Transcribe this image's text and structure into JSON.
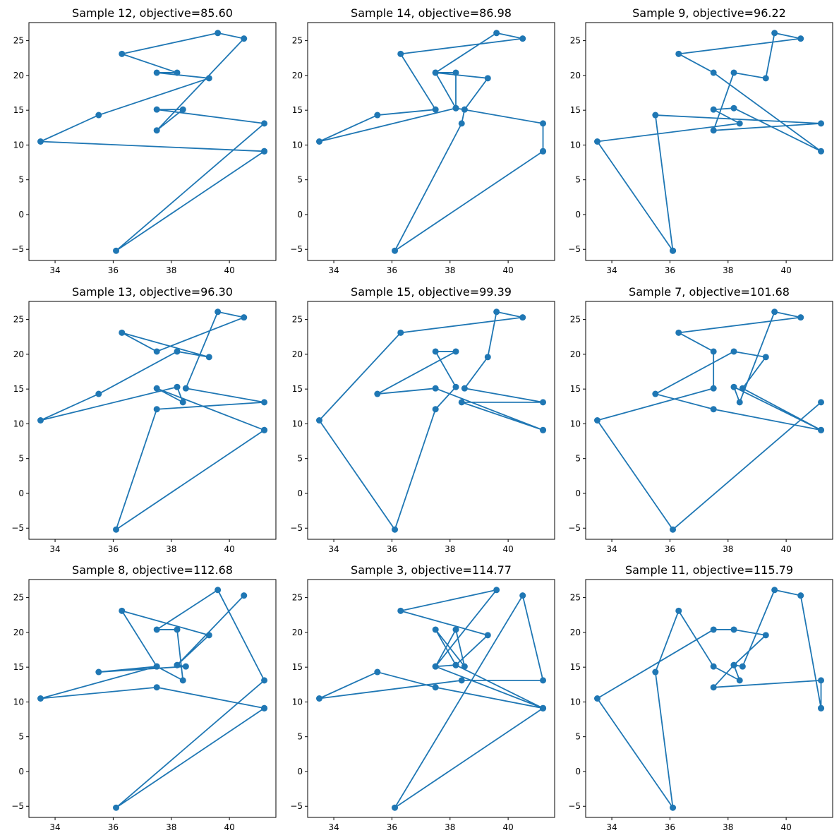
{
  "figure": {
    "color": "#1f77b4"
  },
  "chart_data": [
    {
      "type": "line",
      "title": "Sample 12, objective=85.60",
      "xlabel": "",
      "ylabel": "",
      "xlim": [
        33.1,
        41.6
      ],
      "ylim": [
        -6.6,
        27.6
      ],
      "xticks": [
        34,
        36,
        38,
        40
      ],
      "yticks": [
        -5,
        0,
        5,
        10,
        15,
        20,
        25
      ],
      "xtick_labels": [
        "34",
        "36",
        "38",
        "40"
      ],
      "ytick_labels": [
        "−5",
        "0",
        "5",
        "10",
        "15",
        "20",
        "25"
      ],
      "marker": "circle",
      "grid": false,
      "x": [
        41.2,
        33.5,
        35.5,
        39.3,
        37.5,
        38.2,
        36.3,
        39.6,
        40.5,
        37.5,
        38.4,
        37.5,
        41.2,
        36.1,
        41.2
      ],
      "y": [
        9.1,
        10.5,
        14.3,
        19.6,
        20.4,
        20.4,
        23.1,
        26.1,
        25.3,
        12.1,
        15.1,
        15.1,
        13.1,
        -5.2,
        9.1
      ]
    },
    {
      "type": "line",
      "title": "Sample 14, objective=86.98",
      "xlabel": "",
      "ylabel": "",
      "xlim": [
        33.1,
        41.6
      ],
      "ylim": [
        -6.6,
        27.6
      ],
      "xticks": [
        34,
        36,
        38,
        40
      ],
      "yticks": [
        -5,
        0,
        5,
        10,
        15,
        20,
        25
      ],
      "xtick_labels": [
        "34",
        "36",
        "38",
        "40"
      ],
      "ytick_labels": [
        "−5",
        "0",
        "5",
        "10",
        "15",
        "20",
        "25"
      ],
      "marker": "circle",
      "grid": false,
      "x": [
        41.2,
        36.1,
        38.4,
        38.5,
        39.3,
        37.5,
        38.2,
        38.2,
        37.5,
        39.6,
        40.5,
        36.3,
        37.5,
        35.5,
        33.5,
        38.2,
        41.2,
        41.2
      ],
      "y": [
        9.1,
        -5.2,
        13.1,
        15.1,
        19.6,
        20.4,
        20.4,
        15.3,
        20.4,
        26.1,
        25.3,
        23.1,
        15.1,
        14.3,
        10.5,
        15.3,
        13.1,
        9.1
      ]
    },
    {
      "type": "line",
      "title": "Sample 9, objective=96.22",
      "xlabel": "",
      "ylabel": "",
      "xlim": [
        33.1,
        41.6
      ],
      "ylim": [
        -6.6,
        27.6
      ],
      "xticks": [
        34,
        36,
        38,
        40
      ],
      "yticks": [
        -5,
        0,
        5,
        10,
        15,
        20,
        25
      ],
      "xtick_labels": [
        "34",
        "36",
        "38",
        "40"
      ],
      "ytick_labels": [
        "−5",
        "0",
        "5",
        "10",
        "15",
        "20",
        "25"
      ],
      "marker": "circle",
      "grid": false,
      "x": [
        36.1,
        33.5,
        38.4,
        37.5,
        38.2,
        41.2,
        37.5,
        36.3,
        40.5,
        39.6,
        39.3,
        38.2,
        37.5,
        41.2,
        35.5,
        36.1
      ],
      "y": [
        -5.2,
        10.5,
        13.1,
        15.1,
        15.3,
        9.1,
        20.4,
        23.1,
        25.3,
        26.1,
        19.6,
        20.4,
        12.1,
        13.1,
        14.3,
        -5.2
      ]
    },
    {
      "type": "line",
      "title": "Sample 13, objective=96.30",
      "xlabel": "",
      "ylabel": "",
      "xlim": [
        33.1,
        41.6
      ],
      "ylim": [
        -6.6,
        27.6
      ],
      "xticks": [
        34,
        36,
        38,
        40
      ],
      "yticks": [
        -5,
        0,
        5,
        10,
        15,
        20,
        25
      ],
      "xtick_labels": [
        "34",
        "36",
        "38",
        "40"
      ],
      "ytick_labels": [
        "−5",
        "0",
        "5",
        "10",
        "15",
        "20",
        "25"
      ],
      "marker": "circle",
      "grid": false,
      "x": [
        41.2,
        36.1,
        37.5,
        41.2,
        38.5,
        39.6,
        40.5,
        37.5,
        36.3,
        39.3,
        38.2,
        35.5,
        33.5,
        38.2,
        38.4,
        37.5,
        41.2
      ],
      "y": [
        9.1,
        -5.2,
        12.1,
        13.1,
        15.1,
        26.1,
        25.3,
        20.4,
        23.1,
        19.6,
        20.4,
        14.3,
        10.5,
        15.3,
        13.1,
        15.1,
        9.1
      ]
    },
    {
      "type": "line",
      "title": "Sample 15, objective=99.39",
      "xlabel": "",
      "ylabel": "",
      "xlim": [
        33.1,
        41.6
      ],
      "ylim": [
        -6.6,
        27.6
      ],
      "xticks": [
        34,
        36,
        38,
        40
      ],
      "yticks": [
        -5,
        0,
        5,
        10,
        15,
        20,
        25
      ],
      "xtick_labels": [
        "34",
        "36",
        "38",
        "40"
      ],
      "ytick_labels": [
        "−5",
        "0",
        "5",
        "10",
        "15",
        "20",
        "25"
      ],
      "marker": "circle",
      "grid": false,
      "x": [
        41.2,
        38.4,
        41.2,
        38.5,
        39.3,
        39.6,
        40.5,
        36.3,
        33.5,
        36.1,
        37.5,
        38.2,
        37.5,
        38.2,
        35.5,
        37.5,
        41.2
      ],
      "y": [
        9.1,
        13.1,
        13.1,
        15.1,
        19.6,
        26.1,
        25.3,
        23.1,
        10.5,
        -5.2,
        12.1,
        15.3,
        20.4,
        20.4,
        14.3,
        15.1,
        9.1
      ]
    },
    {
      "type": "line",
      "title": "Sample 7, objective=101.68",
      "xlabel": "",
      "ylabel": "",
      "xlim": [
        33.1,
        41.6
      ],
      "ylim": [
        -6.6,
        27.6
      ],
      "xticks": [
        34,
        36,
        38,
        40
      ],
      "yticks": [
        -5,
        0,
        5,
        10,
        15,
        20,
        25
      ],
      "xtick_labels": [
        "34",
        "36",
        "38",
        "40"
      ],
      "ytick_labels": [
        "−5",
        "0",
        "5",
        "10",
        "15",
        "20",
        "25"
      ],
      "marker": "circle",
      "grid": false,
      "x": [
        41.2,
        36.1,
        33.5,
        37.5,
        37.5,
        36.3,
        40.5,
        39.6,
        38.4,
        38.2,
        41.2,
        38.5,
        39.3,
        38.2,
        35.5,
        37.5,
        41.2
      ],
      "y": [
        13.1,
        -5.2,
        10.5,
        15.1,
        20.4,
        23.1,
        25.3,
        26.1,
        13.1,
        15.3,
        9.1,
        15.1,
        19.6,
        20.4,
        14.3,
        12.1,
        9.1
      ]
    },
    {
      "type": "line",
      "title": "Sample 8, objective=112.68",
      "xlabel": "",
      "ylabel": "",
      "xlim": [
        33.1,
        41.6
      ],
      "ylim": [
        -6.6,
        27.6
      ],
      "xticks": [
        34,
        36,
        38,
        40
      ],
      "yticks": [
        -5,
        0,
        5,
        10,
        15,
        20,
        25
      ],
      "xtick_labels": [
        "34",
        "36",
        "38",
        "40"
      ],
      "ytick_labels": [
        "−5",
        "0",
        "5",
        "10",
        "15",
        "20",
        "25"
      ],
      "marker": "circle",
      "grid": false,
      "x": [
        41.2,
        36.1,
        41.2,
        39.6,
        37.5,
        38.2,
        38.4,
        37.5,
        35.5,
        38.5,
        38.2,
        40.5,
        38.2,
        39.3,
        36.3,
        37.5,
        33.5,
        37.5,
        41.2
      ],
      "y": [
        9.1,
        -5.2,
        13.1,
        26.1,
        20.4,
        20.4,
        13.1,
        15.1,
        14.3,
        15.1,
        15.3,
        25.3,
        15.3,
        19.6,
        23.1,
        15.1,
        10.5,
        12.1,
        9.1
      ]
    },
    {
      "type": "line",
      "title": "Sample 3, objective=114.77",
      "xlabel": "",
      "ylabel": "",
      "xlim": [
        33.1,
        41.6
      ],
      "ylim": [
        -6.6,
        27.6
      ],
      "xticks": [
        34,
        36,
        38,
        40
      ],
      "yticks": [
        -5,
        0,
        5,
        10,
        15,
        20,
        25
      ],
      "xtick_labels": [
        "34",
        "36",
        "38",
        "40"
      ],
      "ytick_labels": [
        "−5",
        "0",
        "5",
        "10",
        "15",
        "20",
        "25"
      ],
      "marker": "circle",
      "grid": false,
      "x": [
        41.2,
        36.1,
        40.5,
        41.2,
        38.4,
        33.5,
        35.5,
        37.5,
        41.2,
        38.2,
        37.5,
        38.5,
        38.2,
        37.5,
        39.6,
        36.3,
        39.3,
        38.2,
        37.5,
        41.2
      ],
      "y": [
        9.1,
        -5.2,
        25.3,
        13.1,
        13.1,
        10.5,
        14.3,
        12.1,
        9.1,
        15.3,
        20.4,
        15.1,
        20.4,
        15.1,
        26.1,
        23.1,
        19.6,
        15.3,
        15.1,
        9.1
      ]
    },
    {
      "type": "line",
      "title": "Sample 11, objective=115.79",
      "xlabel": "",
      "ylabel": "",
      "xlim": [
        33.1,
        41.6
      ],
      "ylim": [
        -6.6,
        27.6
      ],
      "xticks": [
        34,
        36,
        38,
        40
      ],
      "yticks": [
        -5,
        0,
        5,
        10,
        15,
        20,
        25
      ],
      "xtick_labels": [
        "34",
        "36",
        "38",
        "40"
      ],
      "ytick_labels": [
        "−5",
        "0",
        "5",
        "10",
        "15",
        "20",
        "25"
      ],
      "marker": "circle",
      "grid": false,
      "x": [
        41.2,
        41.2,
        37.5,
        38.2,
        38.4,
        37.5,
        36.3,
        35.5,
        36.1,
        33.5,
        37.5,
        38.2,
        39.3,
        38.2,
        38.5,
        39.6,
        40.5,
        41.2
      ],
      "y": [
        9.1,
        13.1,
        12.1,
        15.3,
        13.1,
        15.1,
        23.1,
        14.3,
        -5.2,
        10.5,
        20.4,
        20.4,
        19.6,
        15.3,
        15.1,
        26.1,
        25.3,
        9.1
      ]
    }
  ]
}
